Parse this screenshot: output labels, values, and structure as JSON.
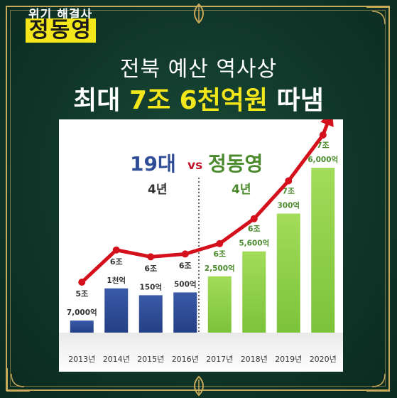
{
  "badge": {
    "subtitle": "위기 해결사",
    "name": "정동영"
  },
  "headline": {
    "line1": "전북 예산 역사상",
    "line2_prefix": "최대",
    "line2_highlight": "7조 6천억원",
    "line2_suffix": "따냄"
  },
  "colors": {
    "bg": "#103a2c",
    "gold": "#c9a95a",
    "yellow": "#f3e61a",
    "blue_bar": "#2f4d97",
    "green_bar": "#8fd04a",
    "arrow": "#d4101c"
  },
  "chart_data": {
    "type": "bar",
    "categories": [
      "2013년",
      "2014년",
      "2015년",
      "2016년",
      "2017년",
      "2018년",
      "2019년",
      "2020년"
    ],
    "values": [
      5.7,
      6.1,
      6.015,
      6.05,
      6.25,
      6.56,
      7.03,
      7.6
    ],
    "unit_note": "values in 조 (trillion won)",
    "label_top": [
      "5조",
      "6조",
      "6조",
      "6조",
      "6조",
      "6조",
      "7조",
      "7조"
    ],
    "label_bottom": [
      "7,000억",
      "1천억",
      "150억",
      "500억",
      "2,500억",
      "5,600억",
      "300억",
      "6,000억"
    ],
    "group_left": {
      "title_num": "19대",
      "years": "4년",
      "color": "#2f4d97"
    },
    "vs": "vs",
    "group_right": {
      "title_name": "정동영",
      "years": "4년",
      "color": "#4a8a2c"
    },
    "grid": false,
    "legend": "none"
  }
}
